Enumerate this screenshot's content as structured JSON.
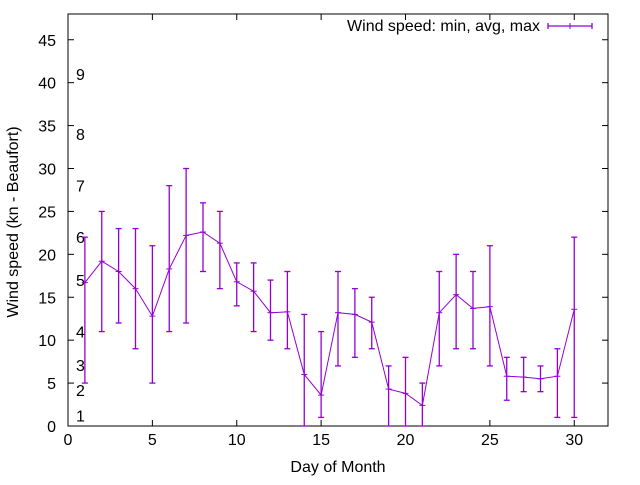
{
  "chart_data": {
    "type": "line",
    "title": "",
    "xlabel": "Day of Month",
    "ylabel": "Wind speed (kn - Beaufort)",
    "xlim": [
      0,
      32
    ],
    "ylim": [
      0,
      48
    ],
    "xticks": [
      0,
      5,
      10,
      15,
      20,
      25,
      30
    ],
    "yticks": [
      0,
      5,
      10,
      15,
      20,
      25,
      30,
      35,
      40,
      45
    ],
    "grid": false,
    "legend": {
      "placement": "top-right",
      "entries": [
        "Wind speed: min, avg, max"
      ]
    },
    "color": "#9400d3",
    "series": [
      {
        "name": "Wind speed: min, avg, max",
        "x": [
          1,
          2,
          3,
          4,
          5,
          6,
          7,
          8,
          9,
          10,
          11,
          12,
          13,
          14,
          15,
          16,
          17,
          18,
          19,
          20,
          21,
          22,
          23,
          24,
          25,
          26,
          27,
          28,
          29,
          30
        ],
        "avg": [
          16.7,
          19.2,
          18,
          16,
          12.8,
          18.3,
          22.2,
          22.6,
          21.3,
          16.8,
          15.7,
          13.2,
          13.3,
          6,
          3.6,
          13.2,
          13,
          12.1,
          4.3,
          3.8,
          2.4,
          13.2,
          15.3,
          13.7,
          13.9,
          5.8,
          5.7,
          5.5,
          5.8,
          13.6
        ],
        "min": [
          5,
          11,
          12,
          9,
          5,
          11,
          12,
          18,
          16,
          14,
          11,
          10,
          9,
          0,
          1,
          7,
          8,
          9,
          0,
          0,
          0,
          7,
          9,
          9,
          7,
          3,
          4,
          4,
          1,
          1
        ],
        "max": [
          22,
          25,
          23,
          23,
          21,
          28,
          30,
          26,
          25,
          19,
          19,
          17,
          18,
          13,
          11,
          18,
          16,
          15,
          7,
          8,
          5,
          18,
          20,
          18,
          21,
          8,
          8,
          7,
          9,
          22
        ]
      }
    ],
    "annotations": [
      {
        "text": "1",
        "y": 1.2
      },
      {
        "text": "2",
        "y": 4.2
      },
      {
        "text": "3",
        "y": 7.1
      },
      {
        "text": "4",
        "y": 11
      },
      {
        "text": "5",
        "y": 17
      },
      {
        "text": "6",
        "y": 22
      },
      {
        "text": "7",
        "y": 28
      },
      {
        "text": "8",
        "y": 34
      },
      {
        "text": "9",
        "y": 41
      }
    ]
  }
}
